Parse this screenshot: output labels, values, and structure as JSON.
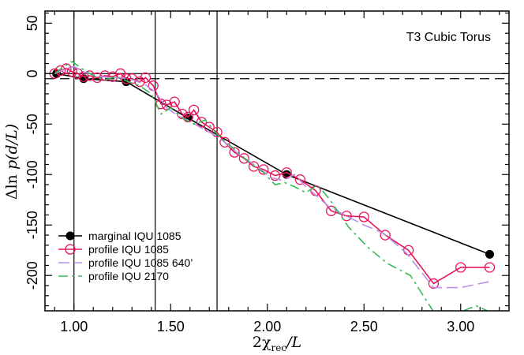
{
  "chart_data": {
    "type": "line",
    "title": "T3 Cubic Torus",
    "xlabel": {
      "main": "2χ",
      "sub": "rec",
      "tail": "/L"
    },
    "ylabel": {
      "prefix": "Δln ",
      "italic": "p",
      "paren": "(d/L)"
    },
    "xlim": [
      0.85,
      3.25
    ],
    "ylim": [
      -235,
      62
    ],
    "xticks": [
      1.0,
      1.5,
      2.0,
      2.5,
      3.0
    ],
    "xtick_labels": [
      "1.00",
      "1.50",
      "2.00",
      "2.50",
      "3.00"
    ],
    "yticks": [
      50,
      0,
      -50,
      -100,
      -150,
      -200
    ],
    "ytick_labels": [
      "50",
      "0",
      "-50",
      "-100",
      "-150",
      "-200"
    ],
    "vertical_lines": [
      1.0,
      1.42,
      1.74
    ],
    "horizontal_zero": 0,
    "dashed_reference": -5,
    "legend_position": "bottom-left",
    "series": [
      {
        "name": "marginal IQU 1085",
        "style": "black-dots-line",
        "color": "#000000",
        "x": [
          0.91,
          1.05,
          1.27,
          1.59,
          2.1,
          3.15
        ],
        "y": [
          0,
          -5,
          -8,
          -44,
          -100,
          -179
        ]
      },
      {
        "name": "profile IQU 1085",
        "style": "open-circles-line",
        "color": "#e8155a",
        "x": [
          0.9,
          0.93,
          0.96,
          0.99,
          1.02,
          1.05,
          1.08,
          1.12,
          1.16,
          1.2,
          1.24,
          1.27,
          1.3,
          1.34,
          1.37,
          1.41,
          1.45,
          1.48,
          1.52,
          1.56,
          1.59,
          1.62,
          1.66,
          1.7,
          1.74,
          1.78,
          1.83,
          1.88,
          1.93,
          1.98,
          2.04,
          2.1,
          2.17,
          2.25,
          2.33,
          2.41,
          2.5,
          2.61,
          2.73,
          2.86,
          3.0,
          3.15
        ],
        "y": [
          0,
          3,
          5,
          2,
          0,
          -3,
          -2,
          -4,
          -2,
          -3,
          0,
          -5,
          -5,
          -8,
          -4,
          -12,
          -30,
          -31,
          -28,
          -40,
          -43,
          -36,
          -48,
          -53,
          -58,
          -68,
          -78,
          -84,
          -92,
          -95,
          -101,
          -98,
          -105,
          -116,
          -136,
          -141,
          -142,
          -160,
          -175,
          -208,
          -192,
          -192
        ]
      },
      {
        "name": "profile IQU 1085 640’",
        "style": "dashed",
        "color": "#b98fea",
        "x": [
          0.9,
          0.95,
          1.0,
          1.06,
          1.12,
          1.18,
          1.24,
          1.3,
          1.36,
          1.42,
          1.48,
          1.54,
          1.6,
          1.66,
          1.72,
          1.78,
          1.84,
          1.9,
          1.96,
          2.02,
          2.08,
          2.14,
          2.2,
          2.26,
          2.32,
          2.4,
          2.5,
          2.6,
          2.72,
          2.86,
          3.0,
          3.15
        ],
        "y": [
          0,
          4,
          7,
          1,
          -2,
          -4,
          -4,
          -6,
          -10,
          -18,
          -34,
          -42,
          -47,
          -54,
          -60,
          -68,
          -78,
          -86,
          -94,
          -103,
          -106,
          -100,
          -112,
          -122,
          -132,
          -140,
          -150,
          -158,
          -178,
          -212,
          -212,
          -206
        ]
      },
      {
        "name": "profile IQU 2170",
        "style": "dash-dot",
        "color": "#33bb55",
        "x": [
          0.9,
          0.94,
          0.99,
          1.04,
          1.1,
          1.16,
          1.22,
          1.28,
          1.34,
          1.4,
          1.45,
          1.5,
          1.56,
          1.62,
          1.68,
          1.74,
          1.8,
          1.86,
          1.92,
          1.98,
          2.04,
          2.09,
          2.14,
          2.2,
          2.26,
          2.32,
          2.42,
          2.52,
          2.62,
          2.74,
          2.86,
          2.94,
          3.0,
          3.08,
          3.15
        ],
        "y": [
          0,
          6,
          12,
          5,
          -2,
          -6,
          -3,
          -8,
          -12,
          -20,
          -40,
          -34,
          -44,
          -50,
          -46,
          -60,
          -70,
          -80,
          -90,
          -98,
          -110,
          -108,
          -112,
          -118,
          -110,
          -124,
          -152,
          -172,
          -188,
          -200,
          -236,
          -236,
          -236,
          -230,
          -236
        ]
      }
    ]
  }
}
